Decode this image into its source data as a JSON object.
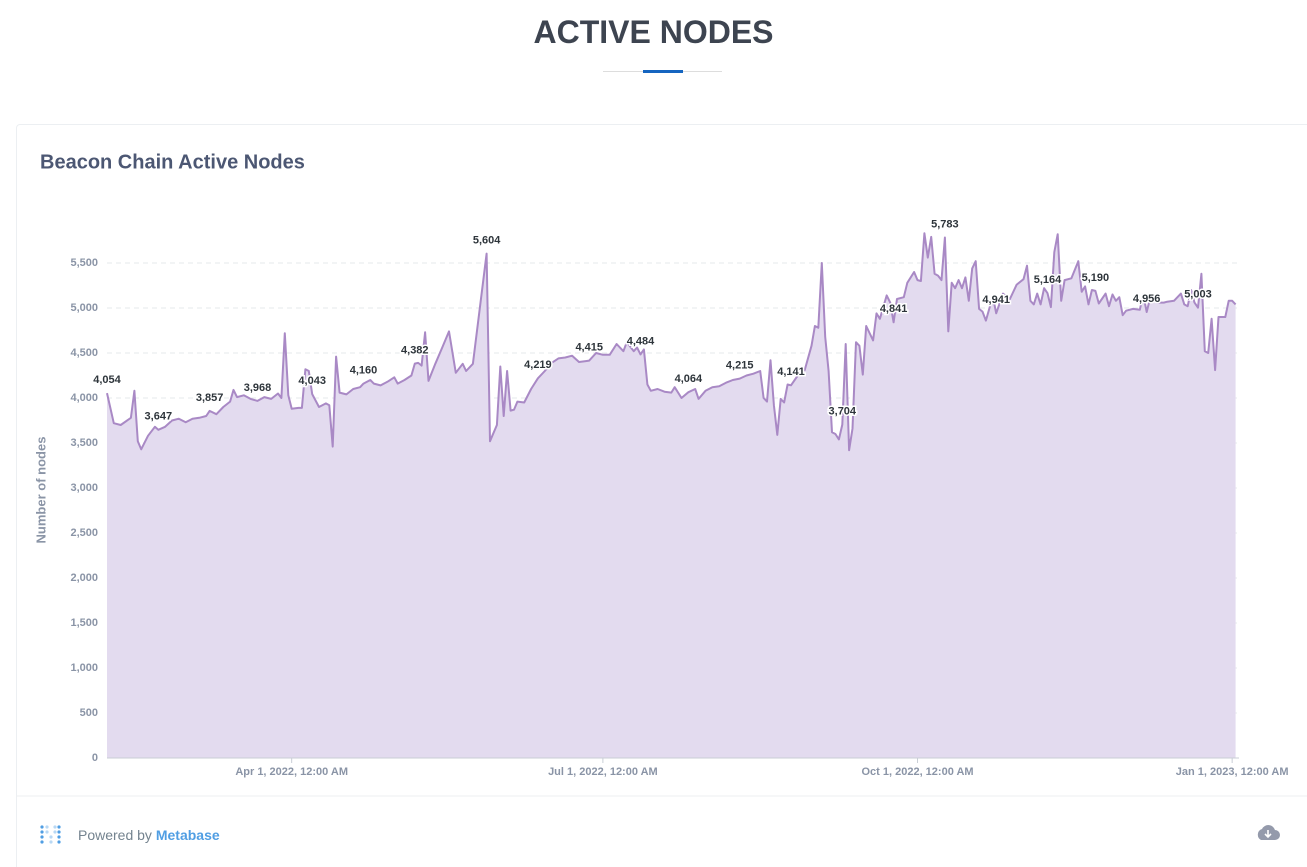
{
  "header": {
    "title": "ACTIVE NODES"
  },
  "footer": {
    "powered_by": "Powered by",
    "brand": "Metabase"
  },
  "chart_data": {
    "type": "line",
    "title": "Beacon Chain Active Nodes",
    "y_label": "Number of nodes",
    "color": "#a989c5",
    "fill": "#e3dbef",
    "grid": true,
    "xlim": [
      "2022-02-06",
      "2023-01-03"
    ],
    "xticks": [
      {
        "value": "2022-04-01",
        "label": "Apr 1, 2022, 12:00 AM"
      },
      {
        "value": "2022-07-01",
        "label": "Jul 1, 2022, 12:00 AM"
      },
      {
        "value": "2022-10-01",
        "label": "Oct 1, 2022, 12:00 AM"
      },
      {
        "value": "2023-01-01",
        "label": "Jan 1, 2023, 12:00 AM"
      }
    ],
    "ylim": [
      0,
      6000
    ],
    "yticks": [
      0,
      500,
      {
        "value": 1000,
        "label": "1,000"
      },
      {
        "value": 1500,
        "label": "1,500"
      },
      {
        "value": 2000,
        "label": "2,000"
      },
      {
        "value": 2500,
        "label": "2,500"
      },
      {
        "value": 3000,
        "label": "3,000"
      },
      {
        "value": 3500,
        "label": "3,500"
      },
      {
        "value": 4000,
        "label": "4,000"
      },
      {
        "value": 4500,
        "label": "4,500"
      },
      {
        "value": 5000,
        "label": "5,000"
      },
      {
        "value": 5500,
        "label": "5,500"
      }
    ],
    "x": [
      "2022-02-06",
      "2022-02-08",
      "2022-02-10",
      "2022-02-13",
      "2022-02-14",
      "2022-02-15",
      "2022-02-16",
      "2022-02-18",
      "2022-02-20",
      "2022-02-21",
      "2022-02-23",
      "2022-02-25",
      "2022-02-27",
      "2022-03-01",
      "2022-03-03",
      "2022-03-05",
      "2022-03-07",
      "2022-03-08",
      "2022-03-10",
      "2022-03-12",
      "2022-03-14",
      "2022-03-15",
      "2022-03-16",
      "2022-03-18",
      "2022-03-20",
      "2022-03-22",
      "2022-03-24",
      "2022-03-26",
      "2022-03-28",
      "2022-03-29",
      "2022-03-30",
      "2022-03-31",
      "2022-04-01",
      "2022-04-03",
      "2022-04-04",
      "2022-04-05",
      "2022-04-06",
      "2022-04-07",
      "2022-04-09",
      "2022-04-11",
      "2022-04-12",
      "2022-04-13",
      "2022-04-14",
      "2022-04-15",
      "2022-04-17",
      "2022-04-19",
      "2022-04-21",
      "2022-04-22",
      "2022-04-24",
      "2022-04-25",
      "2022-04-27",
      "2022-04-29",
      "2022-05-01",
      "2022-05-02",
      "2022-05-04",
      "2022-05-06",
      "2022-05-07",
      "2022-05-08",
      "2022-05-09",
      "2022-05-10",
      "2022-05-11",
      "2022-05-13",
      "2022-05-15",
      "2022-05-17",
      "2022-05-19",
      "2022-05-21",
      "2022-05-22",
      "2022-05-24",
      "2022-05-28",
      "2022-05-29",
      "2022-05-31",
      "2022-06-01",
      "2022-06-02",
      "2022-06-03",
      "2022-06-04",
      "2022-06-05",
      "2022-06-06",
      "2022-06-08",
      "2022-06-10",
      "2022-06-12",
      "2022-06-14",
      "2022-06-16",
      "2022-06-18",
      "2022-06-20",
      "2022-06-22",
      "2022-06-24",
      "2022-06-26",
      "2022-06-27",
      "2022-06-29",
      "2022-07-01",
      "2022-07-03",
      "2022-07-05",
      "2022-07-07",
      "2022-07-08",
      "2022-07-10",
      "2022-07-11",
      "2022-07-12",
      "2022-07-13",
      "2022-07-14",
      "2022-07-15",
      "2022-07-17",
      "2022-07-19",
      "2022-07-21",
      "2022-07-22",
      "2022-07-24",
      "2022-07-26",
      "2022-07-28",
      "2022-07-29",
      "2022-07-31",
      "2022-08-02",
      "2022-08-04",
      "2022-08-06",
      "2022-08-08",
      "2022-08-10",
      "2022-08-12",
      "2022-08-14",
      "2022-08-16",
      "2022-08-17",
      "2022-08-18",
      "2022-08-19",
      "2022-08-20",
      "2022-08-21",
      "2022-08-22",
      "2022-08-23",
      "2022-08-24",
      "2022-08-25",
      "2022-08-27",
      "2022-08-28",
      "2022-08-29",
      "2022-08-31",
      "2022-09-01",
      "2022-09-02",
      "2022-09-03",
      "2022-09-04",
      "2022-09-05",
      "2022-09-06",
      "2022-09-07",
      "2022-09-08",
      "2022-09-09",
      "2022-09-10",
      "2022-09-11",
      "2022-09-12",
      "2022-09-13",
      "2022-09-14",
      "2022-09-15",
      "2022-09-16",
      "2022-09-18",
      "2022-09-19",
      "2022-09-20",
      "2022-09-22",
      "2022-09-23",
      "2022-09-24",
      "2022-09-25",
      "2022-09-27",
      "2022-09-28",
      "2022-09-30",
      "2022-10-01",
      "2022-10-02",
      "2022-10-03",
      "2022-10-04",
      "2022-10-05",
      "2022-10-06",
      "2022-10-07",
      "2022-10-08",
      "2022-10-09",
      "2022-10-10",
      "2022-10-11",
      "2022-10-12",
      "2022-10-13",
      "2022-10-14",
      "2022-10-15",
      "2022-10-16",
      "2022-10-17",
      "2022-10-18",
      "2022-10-19",
      "2022-10-20",
      "2022-10-21",
      "2022-10-23",
      "2022-10-24",
      "2022-10-26",
      "2022-10-28",
      "2022-10-30",
      "2022-11-01",
      "2022-11-02",
      "2022-11-03",
      "2022-11-04",
      "2022-11-05",
      "2022-11-06",
      "2022-11-07",
      "2022-11-08",
      "2022-11-09",
      "2022-11-10",
      "2022-11-11",
      "2022-11-12",
      "2022-11-13",
      "2022-11-15",
      "2022-11-17",
      "2022-11-18",
      "2022-11-19",
      "2022-11-20",
      "2022-11-21",
      "2022-11-22",
      "2022-11-23",
      "2022-11-25",
      "2022-11-26",
      "2022-11-27",
      "2022-11-28",
      "2022-11-29",
      "2022-11-30",
      "2022-12-01",
      "2022-12-03",
      "2022-12-05",
      "2022-12-06",
      "2022-12-07",
      "2022-12-08",
      "2022-12-09",
      "2022-12-10",
      "2022-12-12",
      "2022-12-13",
      "2022-12-15",
      "2022-12-17",
      "2022-12-18",
      "2022-12-19",
      "2022-12-20",
      "2022-12-21",
      "2022-12-22",
      "2022-12-23",
      "2022-12-24",
      "2022-12-25",
      "2022-12-26",
      "2022-12-27",
      "2022-12-28",
      "2022-12-30",
      "2022-12-31",
      "2023-01-01",
      "2023-01-02"
    ],
    "values": [
      4054,
      3720,
      3700,
      3780,
      4080,
      3520,
      3430,
      3580,
      3680,
      3647,
      3680,
      3750,
      3770,
      3730,
      3770,
      3780,
      3800,
      3857,
      3820,
      3900,
      3960,
      4090,
      4010,
      4030,
      3990,
      3968,
      4010,
      3990,
      4050,
      4000,
      4720,
      4030,
      3880,
      3890,
      3890,
      4320,
      4300,
      4043,
      3900,
      3940,
      3920,
      3460,
      4460,
      4060,
      4040,
      4100,
      4120,
      4160,
      4200,
      4160,
      4140,
      4180,
      4230,
      4160,
      4200,
      4250,
      4382,
      4390,
      4360,
      4730,
      4190,
      4380,
      4560,
      4740,
      4280,
      4380,
      4300,
      4380,
      5604,
      3520,
      3700,
      4350,
      3800,
      4300,
      3860,
      3870,
      3960,
      3950,
      4100,
      4219,
      4300,
      4390,
      4440,
      4450,
      4470,
      4400,
      4410,
      4415,
      4500,
      4480,
      4480,
      4600,
      4520,
      4620,
      4520,
      4560,
      4484,
      4540,
      4150,
      4080,
      4100,
      4070,
      4060,
      4120,
      4000,
      4064,
      4100,
      3990,
      4080,
      4120,
      4130,
      4170,
      4200,
      4215,
      4250,
      4270,
      4300,
      4000,
      3960,
      4420,
      3920,
      3590,
      3990,
      3950,
      4150,
      4141,
      4250,
      4320,
      4310,
      4580,
      4800,
      4780,
      5500,
      4680,
      4300,
      3620,
      3600,
      3540,
      3704,
      4600,
      3420,
      3660,
      4620,
      4580,
      4260,
      4800,
      4640,
      4940,
      4880,
      5140,
      5060,
      4841,
      5100,
      5120,
      5280,
      5400,
      5310,
      5300,
      5830,
      5560,
      5790,
      5380,
      5360,
      5310,
      5783,
      4740,
      5280,
      5220,
      5310,
      5220,
      5340,
      5080,
      5440,
      5520,
      4990,
      4960,
      4860,
      5130,
      4941,
      5160,
      5100,
      5260,
      5320,
      5470,
      5080,
      5040,
      5160,
      5040,
      5220,
      5164,
      5010,
      5620,
      5820,
      5080,
      5310,
      5330,
      5520,
      5180,
      5240,
      5040,
      5200,
      5190,
      5050,
      5160,
      5020,
      5150,
      5080,
      5120,
      4920,
      4970,
      4990,
      4980,
      5150,
      4956,
      5110,
      5100,
      5060,
      5060,
      5070,
      5080,
      5160,
      5040,
      5020,
      5200,
      5060,
      5003,
      5380,
      4520,
      4500,
      4880,
      4310,
      4900,
      4900,
      5080,
      5080,
      5040
    ],
    "value_labels": [
      "4,054",
      null,
      null,
      null,
      null,
      null,
      null,
      null,
      null,
      "3,647",
      null,
      null,
      null,
      null,
      null,
      null,
      null,
      "3,857",
      null,
      null,
      null,
      null,
      null,
      null,
      null,
      "3,968",
      null,
      null,
      null,
      null,
      null,
      null,
      null,
      null,
      null,
      null,
      null,
      "4,043",
      null,
      null,
      null,
      null,
      null,
      null,
      null,
      null,
      null,
      "4,160",
      null,
      null,
      null,
      null,
      null,
      null,
      null,
      null,
      "4,382",
      null,
      null,
      null,
      null,
      null,
      null,
      null,
      null,
      null,
      null,
      null,
      "5,604",
      null,
      null,
      null,
      null,
      null,
      null,
      null,
      null,
      null,
      null,
      "4,219",
      null,
      null,
      null,
      null,
      null,
      null,
      null,
      "4,415",
      null,
      null,
      null,
      null,
      null,
      null,
      null,
      null,
      "4,484",
      null,
      null,
      null,
      null,
      null,
      null,
      null,
      null,
      "4,064",
      null,
      null,
      null,
      null,
      null,
      null,
      null,
      "4,215",
      null,
      null,
      null,
      null,
      null,
      null,
      null,
      null,
      null,
      null,
      null,
      "4,141",
      null,
      null,
      null,
      null,
      null,
      null,
      null,
      null,
      null,
      null,
      null,
      null,
      "3,704",
      null,
      null,
      null,
      null,
      null,
      null,
      null,
      null,
      null,
      null,
      null,
      null,
      "4,841",
      null,
      null,
      null,
      null,
      null,
      null,
      null,
      null,
      null,
      null,
      null,
      null,
      "5,783",
      null,
      null,
      null,
      null,
      null,
      null,
      null,
      null,
      null,
      null,
      null,
      null,
      null,
      "4,941",
      null,
      null,
      null,
      null,
      null,
      null,
      null,
      null,
      null,
      null,
      "5,164",
      null,
      null,
      null,
      null,
      null,
      null,
      null,
      null,
      null,
      null,
      null,
      "5,190",
      null,
      null,
      null,
      null,
      null,
      null,
      null,
      null,
      null,
      null,
      null,
      "4,956",
      null,
      null,
      null,
      null,
      null,
      null,
      null,
      null,
      null,
      null,
      null,
      "5,003",
      null,
      null,
      null,
      null,
      null,
      null,
      null,
      null,
      null,
      null
    ]
  }
}
